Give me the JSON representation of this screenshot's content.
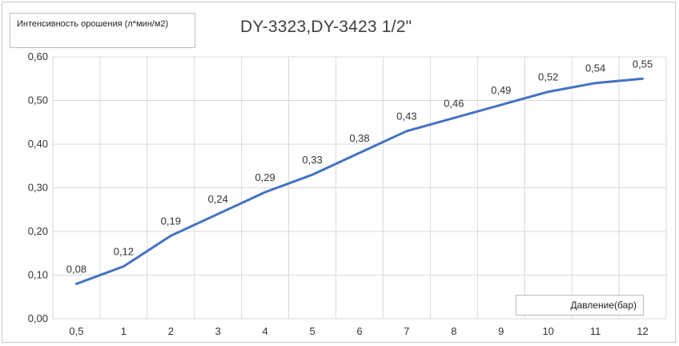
{
  "chart_data": {
    "type": "line",
    "title": "DY-3323,DY-3423 1/2\"",
    "ylabel": "Интенсивность орошения (л*мин/м2)",
    "xlabel": "Давление(бар)",
    "categories": [
      "0,5",
      "1",
      "2",
      "3",
      "4",
      "5",
      "6",
      "7",
      "8",
      "9",
      "10",
      "11",
      "12"
    ],
    "series": [
      {
        "values": [
          0.08,
          0.12,
          0.19,
          0.24,
          0.29,
          0.33,
          0.38,
          0.43,
          0.46,
          0.49,
          0.52,
          0.54,
          0.55
        ],
        "labels": [
          "0,08",
          "0,12",
          "0,19",
          "0,24",
          "0,29",
          "0,33",
          "0,38",
          "0,43",
          "0,46",
          "0,49",
          "0,52",
          "0,54",
          "0,55"
        ],
        "color": "#4472c4"
      }
    ],
    "ylim": [
      0,
      0.6
    ],
    "yticks": [
      "0,00",
      "0,10",
      "0,20",
      "0,30",
      "0,40",
      "0,50",
      "0,60"
    ],
    "grid": true,
    "legend": "none"
  }
}
